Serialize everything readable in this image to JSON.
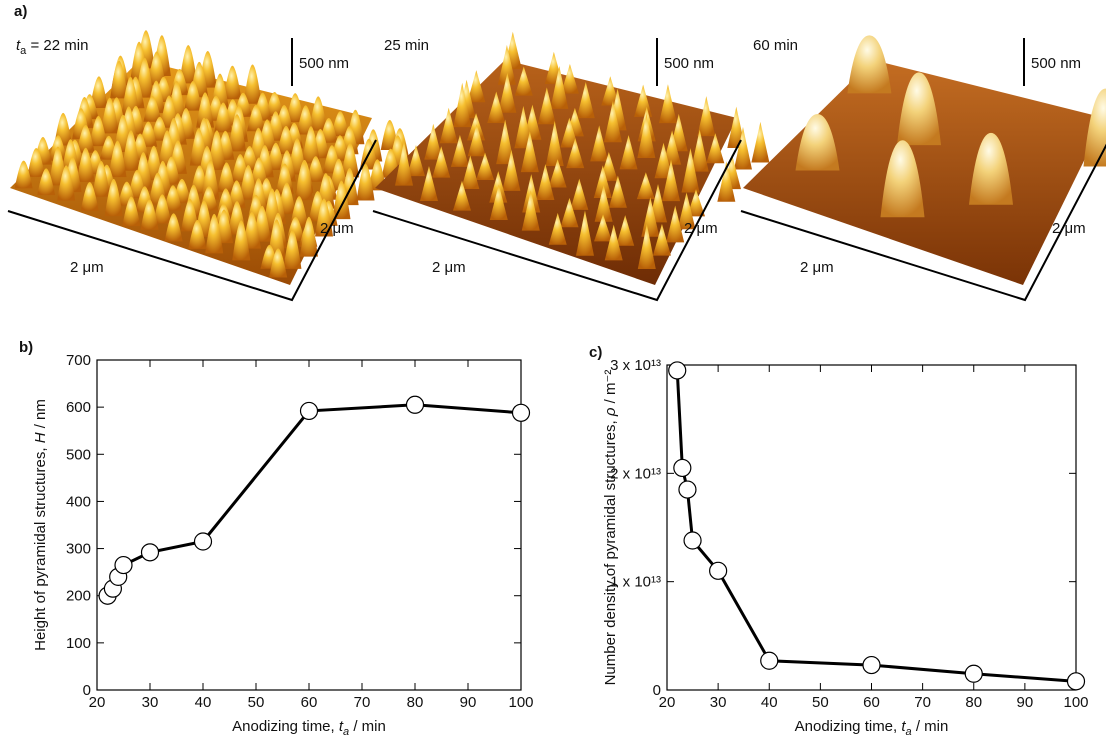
{
  "figure_a": {
    "label": "a)",
    "panels": [
      {
        "title_var": "t",
        "title_sub": "a",
        "title": " = 22 min",
        "scale_bar": "500 nm",
        "x_size": "2 μm",
        "y_size": "2 μm"
      },
      {
        "title": "25 min",
        "scale_bar": "500 nm",
        "x_size": "2 μm",
        "y_size": "2 μm"
      },
      {
        "title": "60 min",
        "scale_bar": "500 nm",
        "x_size": "2 μm",
        "y_size": "2 μm"
      }
    ]
  },
  "chart_data": [
    {
      "type": "line",
      "panel_label": "b)",
      "color": "#000000",
      "marker_fill": "#ffffff",
      "x": [
        22,
        23,
        24,
        25,
        30,
        40,
        60,
        80,
        100
      ],
      "values": [
        200,
        215,
        240,
        265,
        292,
        315,
        592,
        605,
        588
      ],
      "xlim": [
        20,
        100
      ],
      "xticks": [
        20,
        30,
        40,
        50,
        60,
        70,
        80,
        90,
        100
      ],
      "ylim": [
        0,
        700
      ],
      "yticks": [
        0,
        100,
        200,
        300,
        400,
        500,
        600,
        700
      ],
      "xlabel": "Anodizing time, ",
      "xlabel_var": "t",
      "xlabel_sub": "a",
      "xlabel_unit": " / min",
      "ylabel": "Height of pyramidal structures, ",
      "ylabel_var": "H",
      "ylabel_unit": " / nm"
    },
    {
      "type": "line",
      "panel_label": "c)",
      "color": "#000000",
      "marker_fill": "#ffffff",
      "x": [
        22,
        23,
        24,
        25,
        30,
        40,
        60,
        80,
        100
      ],
      "values": [
        29500000000000.0,
        20500000000000.0,
        18500000000000.0,
        13800000000000.0,
        11000000000000.0,
        2700000000000.0,
        2300000000000.0,
        1500000000000.0,
        800000000000.0
      ],
      "xlim": [
        20,
        100
      ],
      "xticks": [
        20,
        30,
        40,
        50,
        60,
        70,
        80,
        90,
        100
      ],
      "ylim": [
        0,
        30000000000000.0
      ],
      "yticks": [
        0,
        {
          "value": 10000000000000.0,
          "label": "1 x 10¹³"
        },
        {
          "value": 20000000000000.0,
          "label": "2 x 10¹³"
        },
        {
          "value": 30000000000000.0,
          "label": "3 x 10¹³"
        }
      ],
      "xlabel": "Anodizing time, ",
      "xlabel_var": "t",
      "xlabel_sub": "a",
      "xlabel_unit": " / min",
      "ylabel": "Number density of pyramidal structures, ",
      "ylabel_var": "ρ",
      "ylabel_unit": " / m⁻²"
    }
  ]
}
